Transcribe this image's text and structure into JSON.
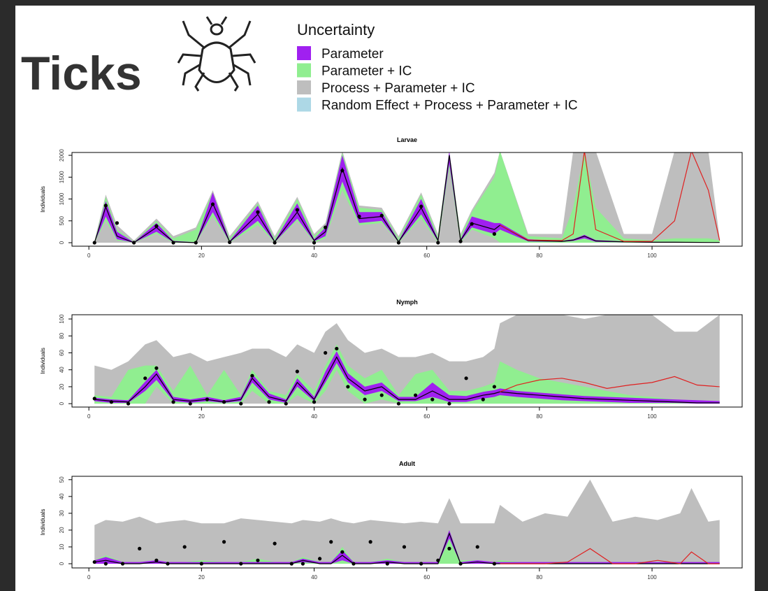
{
  "header": {
    "title": "Ticks"
  },
  "legend": {
    "title": "Uncertainty",
    "items": [
      {
        "name": "Parameter",
        "color": "#a020f0"
      },
      {
        "name": "Parameter + IC",
        "color": "#90ee90"
      },
      {
        "name": "Process + Parameter + IC",
        "color": "#bebebe"
      },
      {
        "name": "Random Effect + Process + Parameter + IC",
        "color": "#add8e6"
      }
    ]
  },
  "chart_data": [
    {
      "type": "band",
      "title": "Larvae",
      "ylabel": "Individuals",
      "xlim": [
        -3,
        116
      ],
      "ylim": [
        -80,
        2065
      ],
      "xticks": [
        0,
        20,
        40,
        60,
        80,
        100
      ],
      "yticks": [
        0,
        500,
        1000,
        1500,
        2000
      ],
      "line_color": "#000000",
      "forecast_color": "#e02020",
      "point_color": "#000000",
      "x": [
        1,
        3,
        5,
        8,
        12,
        15,
        19,
        22,
        25,
        30,
        33,
        37,
        40,
        42,
        45,
        48,
        52,
        55,
        59,
        62,
        64,
        66,
        68,
        72,
        73,
        78,
        84,
        86,
        88,
        90,
        95,
        100,
        104,
        107,
        110,
        112
      ],
      "bands": [
        {
          "lower": [
            0,
            600,
            80,
            0,
            250,
            10,
            0,
            700,
            10,
            500,
            10,
            550,
            30,
            150,
            1400,
            450,
            500,
            10,
            650,
            30,
            1800,
            30,
            350,
            200,
            300,
            30,
            20,
            40,
            100,
            20,
            10,
            5,
            5,
            3,
            2,
            2
          ],
          "upper": [
            10,
            950,
            250,
            10,
            450,
            40,
            10,
            1150,
            40,
            850,
            40,
            900,
            80,
            350,
            2000,
            700,
            700,
            40,
            1000,
            80,
            2100,
            80,
            600,
            450,
            450,
            80,
            40,
            80,
            180,
            60,
            30,
            20,
            20,
            15,
            10,
            10
          ]
        },
        {
          "lower": [
            0,
            500,
            50,
            0,
            200,
            0,
            0,
            600,
            0,
            400,
            0,
            500,
            0,
            100,
            1200,
            400,
            450,
            0,
            550,
            0,
            1700,
            0,
            300,
            100,
            0,
            0,
            0,
            0,
            0,
            0,
            0,
            0,
            0,
            0,
            0,
            0
          ],
          "upper": [
            20,
            1050,
            300,
            20,
            500,
            100,
            300,
            1150,
            100,
            900,
            100,
            1000,
            150,
            400,
            2050,
            800,
            750,
            100,
            1100,
            150,
            2100,
            150,
            700,
            1500,
            2100,
            150,
            100,
            800,
            2100,
            800,
            100,
            50,
            100,
            100,
            100,
            50
          ]
        },
        {
          "lower": [
            0,
            0,
            0,
            0,
            0,
            0,
            0,
            0,
            0,
            0,
            0,
            0,
            0,
            0,
            0,
            0,
            0,
            0,
            0,
            0,
            0,
            0,
            0,
            0,
            0,
            0,
            0,
            0,
            0,
            0,
            0,
            0,
            0,
            0,
            0,
            0
          ],
          "upper": [
            50,
            1100,
            400,
            50,
            550,
            150,
            350,
            1200,
            150,
            950,
            150,
            1050,
            200,
            450,
            2100,
            850,
            800,
            150,
            1150,
            200,
            2100,
            200,
            750,
            1600,
            2100,
            200,
            200,
            2100,
            2100,
            2100,
            200,
            200,
            2100,
            2100,
            2100,
            100
          ]
        }
      ],
      "median": [
        0,
        820,
        150,
        0,
        350,
        20,
        0,
        900,
        20,
        650,
        20,
        700,
        50,
        250,
        1700,
        550,
        600,
        20,
        800,
        50,
        2000,
        50,
        450,
        300,
        400,
        50,
        30,
        60,
        150,
        40,
        20,
        10,
        10,
        8,
        5,
        5
      ],
      "observed": [
        0,
        850,
        450,
        0,
        380,
        0,
        0,
        880,
        10,
        700,
        0,
        750,
        0,
        350,
        1650,
        600,
        620,
        0,
        830,
        0,
        null,
        30,
        430,
        200,
        null,
        null,
        null,
        null,
        null,
        null,
        null,
        null,
        null,
        null,
        null,
        null
      ],
      "forecast": [
        null,
        null,
        null,
        null,
        null,
        null,
        null,
        null,
        null,
        null,
        null,
        null,
        null,
        null,
        null,
        null,
        null,
        null,
        null,
        null,
        null,
        null,
        null,
        null,
        400,
        60,
        50,
        200,
        2100,
        300,
        30,
        30,
        500,
        2100,
        1200,
        50
      ]
    },
    {
      "type": "band",
      "title": "Nymph",
      "ylabel": "Individuals",
      "xlim": [
        -3,
        116
      ],
      "ylim": [
        -4,
        105
      ],
      "xticks": [
        0,
        20,
        40,
        60,
        80,
        100
      ],
      "yticks": [
        0,
        20,
        40,
        60,
        80,
        100
      ],
      "line_color": "#000000",
      "forecast_color": "#e02020",
      "point_color": "#000000",
      "x": [
        1,
        4,
        7,
        10,
        12,
        15,
        18,
        21,
        24,
        27,
        29,
        32,
        35,
        37,
        40,
        42,
        44,
        46,
        49,
        52,
        55,
        58,
        61,
        64,
        67,
        70,
        72,
        73,
        76,
        80,
        84,
        88,
        92,
        96,
        100,
        104,
        108,
        112
      ],
      "bands": [
        {
          "lower": [
            3,
            1,
            1,
            15,
            28,
            3,
            1,
            3,
            1,
            3,
            25,
            5,
            1,
            20,
            3,
            25,
            48,
            25,
            10,
            15,
            3,
            3,
            8,
            2,
            2,
            6,
            8,
            10,
            8,
            6,
            4,
            3,
            2,
            1,
            1,
            1,
            0,
            0
          ],
          "upper": [
            7,
            5,
            4,
            26,
            40,
            8,
            5,
            8,
            4,
            8,
            35,
            12,
            5,
            30,
            8,
            38,
            62,
            36,
            20,
            25,
            8,
            8,
            25,
            10,
            9,
            14,
            16,
            18,
            15,
            13,
            11,
            9,
            8,
            7,
            6,
            5,
            4,
            3
          ]
        },
        {
          "lower": [
            0,
            0,
            0,
            0,
            20,
            0,
            0,
            0,
            0,
            0,
            15,
            0,
            0,
            10,
            0,
            15,
            40,
            15,
            0,
            5,
            0,
            0,
            0,
            0,
            0,
            0,
            0,
            0,
            0,
            0,
            0,
            0,
            0,
            0,
            0,
            0,
            0,
            0
          ],
          "upper": [
            10,
            8,
            40,
            45,
            45,
            15,
            45,
            10,
            40,
            10,
            40,
            15,
            10,
            35,
            15,
            45,
            70,
            45,
            30,
            40,
            10,
            35,
            40,
            15,
            15,
            20,
            25,
            50,
            40,
            30,
            25,
            20,
            15,
            10,
            8,
            5,
            3,
            2
          ]
        },
        {
          "lower": [
            0,
            0,
            0,
            0,
            0,
            0,
            0,
            0,
            0,
            0,
            0,
            0,
            0,
            0,
            0,
            0,
            0,
            0,
            0,
            0,
            0,
            0,
            0,
            0,
            0,
            0,
            0,
            0,
            0,
            0,
            0,
            0,
            0,
            0,
            0,
            0,
            0,
            0
          ],
          "upper": [
            45,
            40,
            50,
            70,
            75,
            55,
            60,
            50,
            55,
            60,
            65,
            65,
            55,
            70,
            60,
            85,
            95,
            75,
            60,
            65,
            55,
            55,
            60,
            50,
            50,
            55,
            65,
            95,
            105,
            105,
            105,
            100,
            105,
            105,
            105,
            85,
            85,
            105
          ]
        }
      ],
      "median": [
        5,
        3,
        2,
        20,
        35,
        5,
        3,
        5,
        2,
        5,
        30,
        8,
        3,
        25,
        5,
        30,
        55,
        30,
        15,
        20,
        5,
        5,
        15,
        5,
        5,
        10,
        12,
        14,
        12,
        10,
        8,
        6,
        5,
        4,
        3,
        2,
        1,
        1
      ],
      "observed": [
        6,
        2,
        0,
        30,
        42,
        2,
        0,
        5,
        2,
        0,
        33,
        2,
        0,
        38,
        2,
        60,
        65,
        20,
        5,
        10,
        0,
        10,
        5,
        0,
        30,
        5,
        20,
        null,
        null,
        null,
        null,
        null,
        null,
        null,
        null,
        null,
        null,
        null
      ],
      "forecast": [
        null,
        null,
        null,
        null,
        null,
        null,
        null,
        null,
        null,
        null,
        null,
        null,
        null,
        null,
        null,
        null,
        null,
        null,
        null,
        null,
        null,
        null,
        null,
        null,
        null,
        null,
        null,
        14,
        22,
        28,
        30,
        25,
        18,
        22,
        25,
        32,
        22,
        20
      ]
    },
    {
      "type": "band",
      "title": "Adult",
      "ylabel": "Individuals",
      "xlim": [
        -3,
        116
      ],
      "ylim": [
        -2.5,
        52
      ],
      "xticks": [
        0,
        20,
        40,
        60,
        80,
        100
      ],
      "yticks": [
        0,
        10,
        20,
        30,
        40,
        50
      ],
      "line_color": "#000000",
      "forecast_color": "#e02020",
      "point_color": "#000000",
      "x": [
        1,
        3,
        6,
        9,
        12,
        14,
        17,
        20,
        24,
        27,
        30,
        33,
        36,
        38,
        41,
        43,
        45,
        47,
        50,
        53,
        56,
        59,
        62,
        64,
        66,
        69,
        72,
        73,
        77,
        81,
        85,
        89,
        93,
        97,
        101,
        105,
        107,
        110,
        112
      ],
      "bands": [
        {
          "lower": [
            0,
            0,
            0,
            0,
            0,
            0,
            0,
            0,
            0,
            0,
            0,
            0,
            0,
            1,
            0,
            0,
            2,
            0,
            0,
            0,
            0,
            0,
            0,
            15,
            0,
            0,
            0,
            0,
            0,
            0,
            0,
            0,
            0,
            0,
            0,
            0,
            0,
            0,
            0
          ],
          "upper": [
            2,
            4,
            1,
            1,
            2,
            1,
            1,
            1,
            1,
            1,
            1,
            1,
            1,
            3,
            1,
            1,
            8,
            1,
            1,
            2,
            1,
            1,
            1,
            20,
            1,
            2,
            1,
            1,
            1,
            1,
            1,
            1,
            1,
            1,
            1,
            1,
            1,
            1,
            1
          ]
        },
        {
          "lower": [
            0,
            0,
            0,
            0,
            0,
            0,
            0,
            0,
            0,
            0,
            0,
            0,
            0,
            0,
            0,
            0,
            0,
            0,
            0,
            0,
            0,
            0,
            0,
            0,
            0,
            0,
            0,
            0,
            0,
            0,
            0,
            0,
            0,
            0,
            0,
            0,
            0,
            0,
            0
          ],
          "upper": [
            2,
            5,
            1,
            1,
            2,
            1,
            1,
            2,
            1,
            1,
            3,
            1,
            1,
            4,
            1,
            1,
            10,
            1,
            1,
            3,
            1,
            1,
            1,
            20,
            2,
            2,
            1,
            2,
            1,
            1,
            1,
            1,
            1,
            1,
            1,
            1,
            1,
            1,
            1
          ]
        },
        {
          "lower": [
            0,
            0,
            0,
            0,
            0,
            0,
            0,
            0,
            0,
            0,
            0,
            0,
            0,
            0,
            0,
            0,
            0,
            0,
            0,
            0,
            0,
            0,
            0,
            0,
            0,
            0,
            0,
            0,
            0,
            0,
            0,
            0,
            0,
            0,
            0,
            0,
            0,
            0,
            0
          ],
          "upper": [
            23,
            26,
            25,
            28,
            24,
            25,
            26,
            24,
            24,
            27,
            26,
            25,
            24,
            26,
            25,
            27,
            25,
            24,
            26,
            25,
            24,
            25,
            24,
            39,
            24,
            24,
            24,
            35,
            25,
            30,
            28,
            50,
            25,
            28,
            26,
            30,
            45,
            25,
            26
          ]
        }
      ],
      "median": [
        1,
        2,
        0,
        0,
        1,
        0,
        0,
        0,
        0,
        0,
        0,
        0,
        0,
        2,
        0,
        0,
        5,
        0,
        0,
        1,
        0,
        0,
        0,
        18,
        0,
        1,
        0,
        0,
        0,
        0,
        0,
        0,
        0,
        0,
        0,
        0,
        0,
        0,
        0
      ],
      "observed": [
        1,
        0,
        0,
        9,
        2,
        0,
        10,
        0,
        13,
        0,
        2,
        12,
        0,
        0,
        3,
        13,
        7,
        0,
        13,
        0,
        10,
        0,
        2,
        9,
        0,
        10,
        0,
        null,
        null,
        null,
        null,
        null,
        null,
        null,
        null,
        null,
        null,
        null,
        null
      ],
      "forecast": [
        null,
        null,
        null,
        null,
        null,
        null,
        null,
        null,
        null,
        null,
        null,
        null,
        null,
        null,
        null,
        null,
        null,
        null,
        null,
        null,
        null,
        null,
        null,
        null,
        null,
        null,
        null,
        0,
        0,
        0,
        1,
        9,
        0,
        0,
        2,
        0,
        7,
        0,
        0
      ]
    }
  ]
}
